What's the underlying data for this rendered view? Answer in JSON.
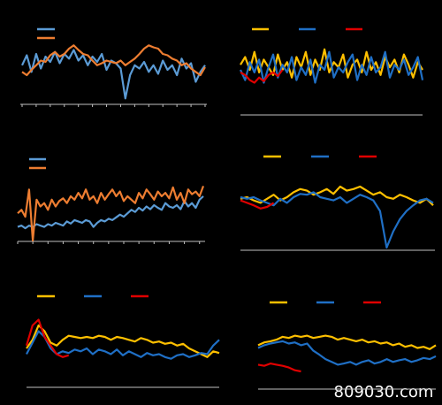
{
  "watermark": "809030.com",
  "chart_data": [
    {
      "type": "line",
      "legend": "top-left",
      "ylim": [
        0,
        100
      ],
      "xlim": [
        0,
        39
      ],
      "xticks": [
        0,
        3,
        6,
        9,
        12,
        15,
        18,
        21,
        24,
        27,
        30,
        33,
        36,
        39
      ],
      "series": [
        {
          "color": "#5b9bd5",
          "values": [
            55,
            70,
            45,
            72,
            50,
            68,
            60,
            75,
            58,
            72,
            65,
            78,
            62,
            70,
            55,
            68,
            60,
            72,
            48,
            62,
            58,
            50,
            5,
            40,
            55,
            50,
            60,
            45,
            55,
            42,
            62,
            48,
            55,
            40,
            65,
            50,
            58,
            30,
            45,
            55
          ]
        },
        {
          "color": "#ed7d31",
          "values": [
            45,
            40,
            48,
            55,
            62,
            60,
            70,
            75,
            68,
            72,
            80,
            85,
            78,
            72,
            70,
            62,
            55,
            58,
            62,
            60,
            58,
            62,
            55,
            60,
            65,
            72,
            80,
            85,
            82,
            80,
            72,
            70,
            65,
            62,
            55,
            58,
            50,
            45,
            40,
            52
          ]
        }
      ]
    },
    {
      "type": "line",
      "legend": "top",
      "ylim": [
        0,
        100
      ],
      "series": [
        {
          "color": "#ffc000",
          "values": [
            60,
            75,
            50,
            85,
            45,
            70,
            55,
            40,
            80,
            50,
            65,
            35,
            75,
            55,
            85,
            40,
            70,
            50,
            90,
            45,
            65,
            55,
            80,
            35,
            60,
            70,
            45,
            85,
            50,
            65,
            40,
            75,
            55,
            70,
            45,
            80,
            60,
            35,
            65,
            50
          ]
        },
        {
          "color": "#1f6fc5",
          "values": [
            50,
            30,
            65,
            45,
            70,
            25,
            55,
            80,
            35,
            60,
            45,
            75,
            30,
            55,
            40,
            70,
            25,
            60,
            50,
            85,
            35,
            55,
            45,
            65,
            80,
            30,
            60,
            40,
            75,
            45,
            55,
            85,
            35,
            60,
            50,
            70,
            40,
            55,
            75,
            30
          ]
        },
        {
          "color": "#e00000",
          "values": [
            45,
            40,
            30,
            25,
            35,
            28,
            40,
            45,
            38,
            50,
            null,
            null,
            null,
            null,
            null,
            null,
            null,
            null,
            null,
            null,
            null,
            null,
            null,
            null,
            null,
            null,
            null,
            null,
            null,
            null,
            null,
            null,
            null,
            null,
            null,
            null,
            null,
            null,
            null,
            null
          ]
        }
      ]
    },
    {
      "type": "line",
      "legend": "top-left",
      "ylim": [
        0,
        100
      ],
      "xlim": [
        0,
        49
      ],
      "xticks": [
        0,
        4,
        8,
        12,
        16,
        20,
        24,
        28,
        32,
        36,
        40,
        44,
        48
      ],
      "series": [
        {
          "color": "#5b9bd5",
          "values": [
            20,
            22,
            18,
            22,
            20,
            24,
            22,
            20,
            24,
            22,
            26,
            24,
            22,
            28,
            25,
            30,
            28,
            26,
            30,
            28,
            20,
            26,
            30,
            28,
            32,
            30,
            34,
            38,
            35,
            40,
            45,
            42,
            48,
            44,
            50,
            46,
            52,
            48,
            45,
            55,
            50,
            48,
            52,
            46,
            58,
            50,
            55,
            48,
            60,
            65
          ]
        },
        {
          "color": "#ed7d31",
          "values": [
            40,
            45,
            35,
            75,
            0,
            60,
            50,
            55,
            45,
            60,
            50,
            58,
            62,
            55,
            65,
            60,
            70,
            62,
            75,
            60,
            65,
            55,
            70,
            60,
            68,
            75,
            65,
            72,
            58,
            65,
            60,
            55,
            70,
            62,
            75,
            68,
            60,
            72,
            65,
            70,
            62,
            78,
            60,
            70,
            55,
            75,
            68,
            72,
            65,
            80
          ]
        }
      ]
    },
    {
      "type": "line",
      "legend": "top",
      "ylim": [
        0,
        100
      ],
      "series": [
        {
          "color": "#ffc000",
          "values": [
            60,
            62,
            58,
            55,
            60,
            65,
            58,
            62,
            68,
            72,
            70,
            65,
            68,
            72,
            66,
            75,
            70,
            72,
            75,
            70,
            65,
            68,
            62,
            60,
            65,
            62,
            58,
            55,
            60,
            52
          ]
        },
        {
          "color": "#1f6fc5",
          "values": [
            62,
            60,
            62,
            58,
            55,
            52,
            60,
            55,
            62,
            66,
            65,
            68,
            62,
            60,
            58,
            62,
            55,
            60,
            65,
            62,
            58,
            45,
            0,
            20,
            35,
            45,
            52,
            58,
            60,
            55
          ]
        },
        {
          "color": "#e00000",
          "values": [
            58,
            55,
            52,
            48,
            50,
            55,
            null,
            null,
            null,
            null,
            null,
            null,
            null,
            null,
            null,
            null,
            null,
            null,
            null,
            null,
            null,
            null,
            null,
            null,
            null,
            null,
            null,
            null,
            null,
            null
          ]
        }
      ]
    },
    {
      "type": "line",
      "legend": "top",
      "ylim": [
        0,
        100
      ],
      "series": [
        {
          "color": "#ffc000",
          "values": [
            40,
            55,
            80,
            70,
            50,
            45,
            55,
            62,
            60,
            58,
            60,
            58,
            62,
            60,
            55,
            60,
            58,
            55,
            52,
            58,
            55,
            50,
            52,
            48,
            50,
            45,
            48,
            40,
            35,
            30,
            25,
            35,
            32
          ]
        },
        {
          "color": "#1f6fc5",
          "values": [
            30,
            50,
            70,
            60,
            40,
            30,
            35,
            32,
            38,
            35,
            40,
            30,
            38,
            35,
            30,
            38,
            28,
            35,
            30,
            25,
            32,
            28,
            30,
            25,
            22,
            28,
            30,
            25,
            28,
            32,
            30,
            45,
            55
          ]
        },
        {
          "color": "#e00000",
          "values": [
            45,
            80,
            90,
            60,
            45,
            30,
            25,
            28,
            null,
            null,
            null,
            null,
            null,
            null,
            null,
            null,
            null,
            null,
            null,
            null,
            null,
            null,
            null,
            null,
            null,
            null,
            null,
            null,
            null,
            null,
            null,
            null,
            null
          ]
        }
      ]
    },
    {
      "type": "line",
      "legend": "top",
      "ylim": [
        0,
        100
      ],
      "series": [
        {
          "color": "#ffc000",
          "values": [
            55,
            60,
            62,
            65,
            70,
            68,
            72,
            70,
            72,
            68,
            70,
            72,
            70,
            65,
            68,
            65,
            62,
            65,
            60,
            62,
            58,
            60,
            55,
            58,
            52,
            55,
            50,
            52,
            48,
            55
          ]
        },
        {
          "color": "#1f6fc5",
          "values": [
            50,
            55,
            58,
            60,
            62,
            58,
            60,
            55,
            58,
            45,
            38,
            30,
            25,
            20,
            22,
            25,
            20,
            25,
            28,
            22,
            25,
            30,
            25,
            28,
            30,
            25,
            28,
            32,
            30,
            35
          ]
        },
        {
          "color": "#e00000",
          "values": [
            20,
            18,
            22,
            20,
            18,
            15,
            10,
            8,
            null,
            null,
            null,
            null,
            null,
            null,
            null,
            null,
            null,
            null,
            null,
            null,
            null,
            null,
            null,
            null,
            null,
            null,
            null,
            null,
            null,
            null
          ]
        }
      ]
    }
  ]
}
